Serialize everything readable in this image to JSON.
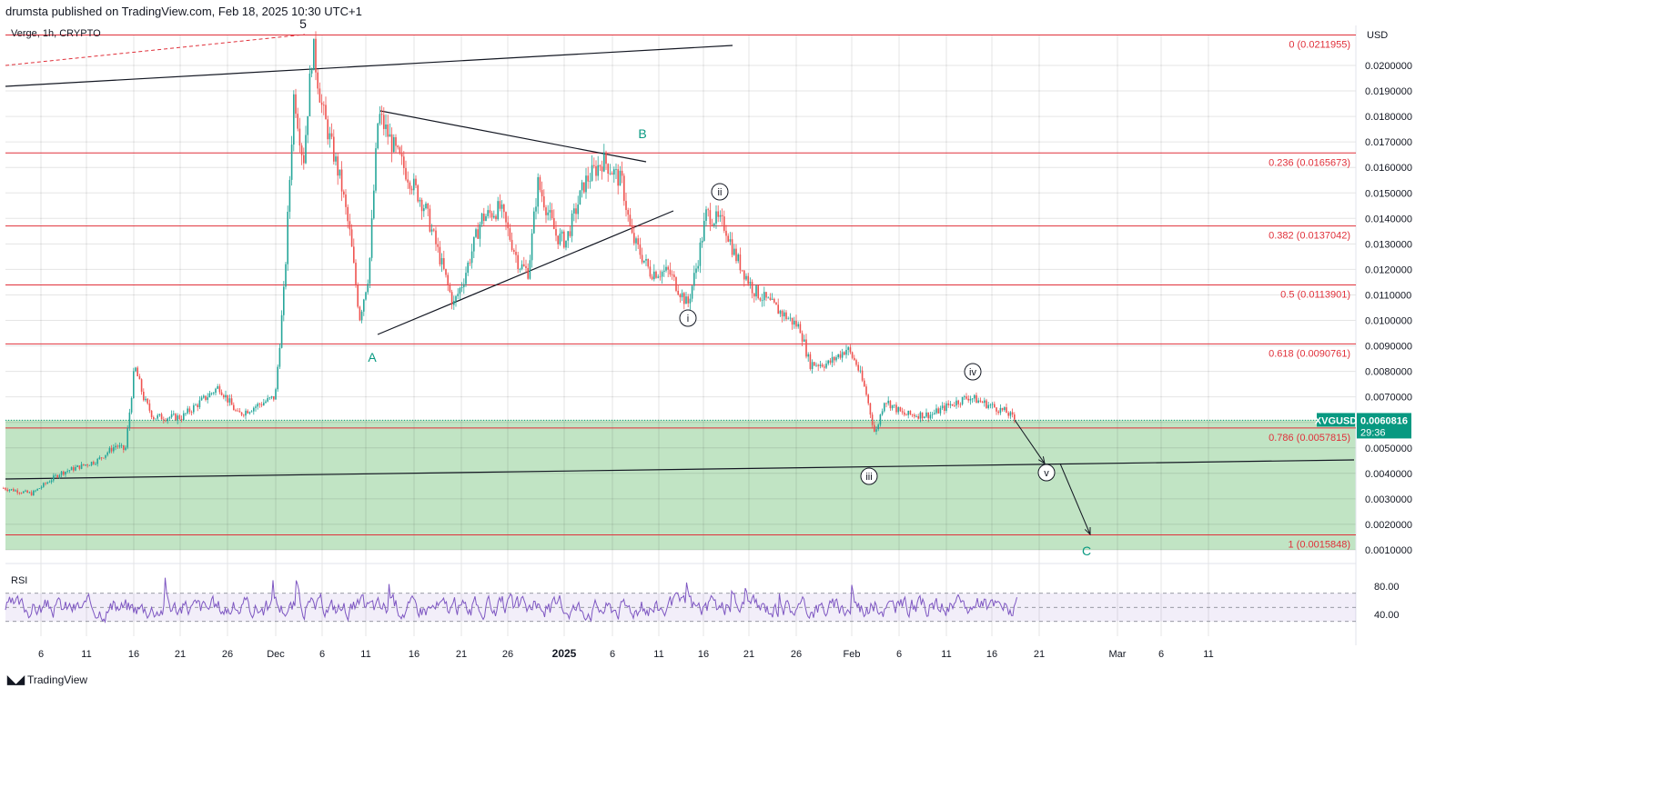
{
  "header": {
    "published": "drumsta published on TradingView.com, Feb 18, 2025 10:30 UTC+1"
  },
  "symbol_info": "Verge, 1h, CRYPTO",
  "footer": {
    "brand": "TradingView",
    "logo_icon": "tradingview-logo-icon"
  },
  "colors": {
    "up": "#26a69a",
    "down": "#ef5350",
    "fib": "#e0303a",
    "zone": "#c1e4c4",
    "rsi": "#7e57c2",
    "accent": "#089981",
    "wave_letter": "#089981"
  },
  "chart_data": {
    "type": "candlestick",
    "currency_label": "USD",
    "ylim": [
      0.0009,
      0.0212
    ],
    "y_ticks": [
      "0.0200000",
      "0.0190000",
      "0.0180000",
      "0.0170000",
      "0.0160000",
      "0.0150000",
      "0.0140000",
      "0.0130000",
      "0.0120000",
      "0.0110000",
      "0.0100000",
      "0.0090000",
      "0.0080000",
      "0.0070000",
      "0.0050000",
      "0.0040000",
      "0.0030000",
      "0.0020000",
      "0.0010000"
    ],
    "x_ticks": [
      "6",
      "11",
      "16",
      "21",
      "26",
      "Dec",
      "6",
      "11",
      "16",
      "21",
      "26",
      "2025",
      "6",
      "11",
      "16",
      "21",
      "26",
      "Feb",
      "6",
      "11",
      "16",
      "21",
      "Mar",
      "6",
      "11"
    ],
    "price_path": [
      [
        "2024-11-02",
        0.00342
      ],
      [
        "2024-11-05",
        0.0032
      ],
      [
        "2024-11-08",
        0.004
      ],
      [
        "2024-11-12",
        0.0045
      ],
      [
        "2024-11-14",
        0.0051
      ],
      [
        "2024-11-15",
        0.0049
      ],
      [
        "2024-11-16",
        0.0082
      ],
      [
        "2024-11-17",
        0.0069
      ],
      [
        "2024-11-18",
        0.0062
      ],
      [
        "2024-11-21",
        0.0062
      ],
      [
        "2024-11-25",
        0.0074
      ],
      [
        "2024-11-27",
        0.0063
      ],
      [
        "2024-12-01",
        0.007
      ],
      [
        "2024-12-02",
        0.0115
      ],
      [
        "2024-12-03",
        0.019
      ],
      [
        "2024-12-04",
        0.0162
      ],
      [
        "2024-12-05",
        0.0208
      ],
      [
        "2024-12-06",
        0.0183
      ],
      [
        "2024-12-08",
        0.0154
      ],
      [
        "2024-12-09",
        0.0133
      ],
      [
        "2024-12-10",
        0.0101
      ],
      [
        "2024-12-11",
        0.0119
      ],
      [
        "2024-12-12",
        0.0181
      ],
      [
        "2024-12-14",
        0.0165
      ],
      [
        "2024-12-17",
        0.0144
      ],
      [
        "2024-12-19",
        0.0119
      ],
      [
        "2024-12-20",
        0.0106
      ],
      [
        "2024-12-21",
        0.0115
      ],
      [
        "2024-12-23",
        0.014
      ],
      [
        "2024-12-25",
        0.0144
      ],
      [
        "2024-12-27",
        0.0122
      ],
      [
        "2024-12-28",
        0.0119
      ],
      [
        "2024-12-29",
        0.0154
      ],
      [
        "2024-12-31",
        0.0133
      ],
      [
        "2025-01-01",
        0.0131
      ],
      [
        "2025-01-03",
        0.0154
      ],
      [
        "2025-01-05",
        0.0163
      ],
      [
        "2025-01-07",
        0.0154
      ],
      [
        "2025-01-08",
        0.0133
      ],
      [
        "2025-01-10",
        0.0119
      ],
      [
        "2025-01-12",
        0.0119
      ],
      [
        "2025-01-14",
        0.0106
      ],
      [
        "2025-01-15",
        0.0122
      ],
      [
        "2025-01-16",
        0.0142
      ],
      [
        "2025-01-18",
        0.0137
      ],
      [
        "2025-01-19",
        0.0126
      ],
      [
        "2025-01-21",
        0.0112
      ],
      [
        "2025-01-23",
        0.0106
      ],
      [
        "2025-01-26",
        0.0097
      ],
      [
        "2025-01-27",
        0.0083
      ],
      [
        "2025-01-29",
        0.0083
      ],
      [
        "2025-01-31",
        0.0089
      ],
      [
        "2025-02-01",
        0.0083
      ],
      [
        "2025-02-02",
        0.0072
      ],
      [
        "2025-02-03",
        0.0055
      ],
      [
        "2025-02-04",
        0.0069
      ],
      [
        "2025-02-06",
        0.0063
      ],
      [
        "2025-02-09",
        0.0063
      ],
      [
        "2025-02-11",
        0.0067
      ],
      [
        "2025-02-13",
        0.007
      ],
      [
        "2025-02-15",
        0.0067
      ],
      [
        "2025-02-17",
        0.0064
      ],
      [
        "2025-02-18",
        0.0060816
      ]
    ],
    "last_price": {
      "symbol": "XVGUSD",
      "value": "0.0060816",
      "countdown": "29:36"
    },
    "fib_levels": [
      {
        "ratio": 0,
        "price": 0.0211955,
        "label": "0 (0.0211955)"
      },
      {
        "ratio": 0.236,
        "price": 0.0165673,
        "label": "0.236 (0.0165673)"
      },
      {
        "ratio": 0.382,
        "price": 0.0137042,
        "label": "0.382 (0.0137042)"
      },
      {
        "ratio": 0.5,
        "price": 0.0113901,
        "label": "0.5 (0.0113901)"
      },
      {
        "ratio": 0.618,
        "price": 0.0090761,
        "label": "0.618 (0.0090761)"
      },
      {
        "ratio": 0.786,
        "price": 0.0057815,
        "label": "0.786 (0.0057815)"
      },
      {
        "ratio": 1,
        "price": 0.0015848,
        "label": "1 (0.0015848)"
      }
    ],
    "wave_labels": {
      "w5": "5",
      "A": "A",
      "B": "B",
      "i": "i",
      "ii": "ii",
      "iii": "iii",
      "iv": "iv",
      "v": "v",
      "C": "C"
    },
    "rsi": {
      "label": "RSI",
      "ticks": [
        "80.00",
        "40.00"
      ],
      "upper_band": 70,
      "lower_band": 30
    }
  }
}
